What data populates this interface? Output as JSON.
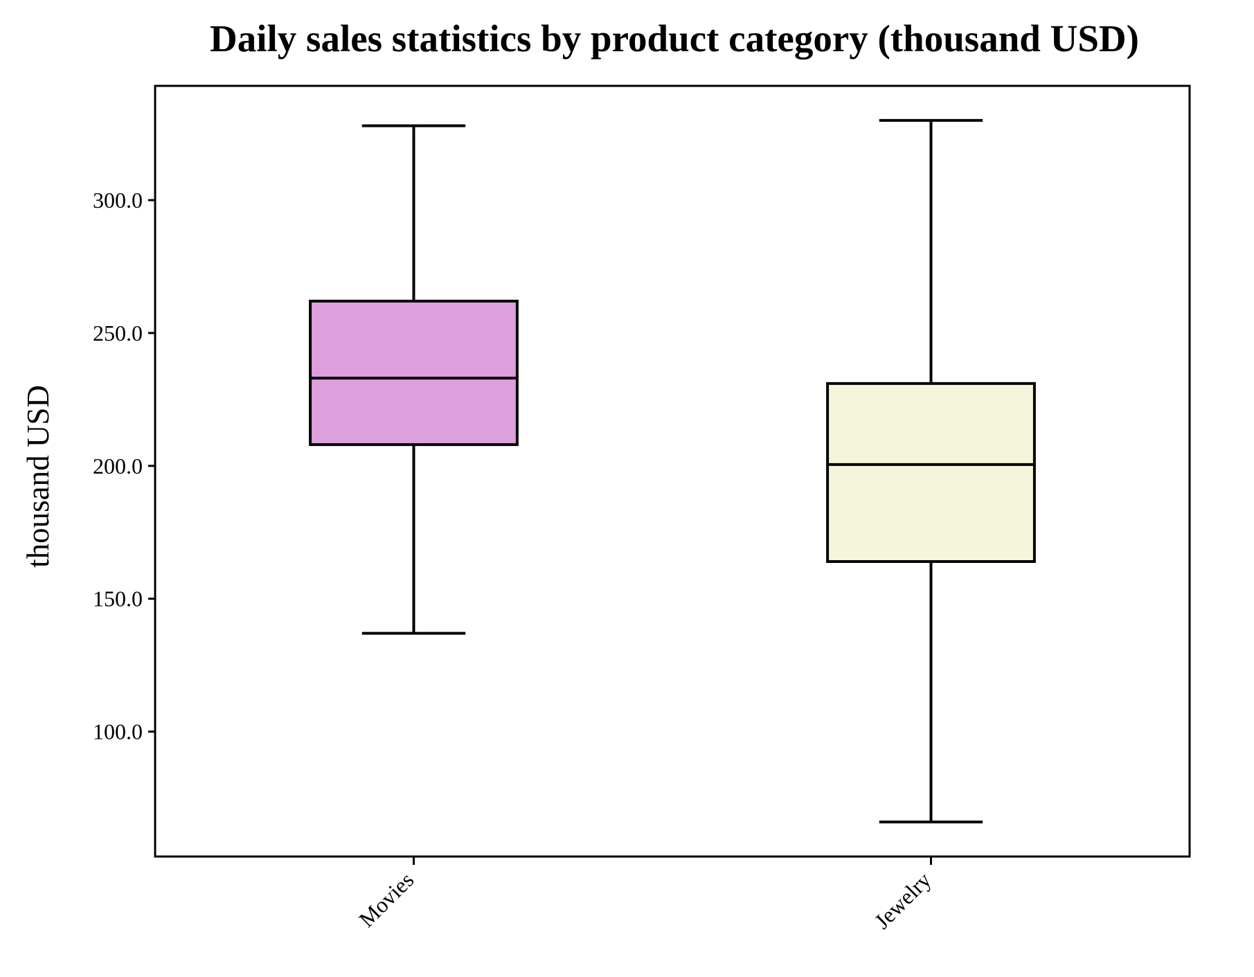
{
  "chart_data": {
    "type": "boxplot",
    "title": "Daily sales statistics by product category (thousand USD)",
    "xlabel": "",
    "ylabel": "thousand USD",
    "ylim": [
      53,
      343
    ],
    "yticks": [
      100.0,
      150.0,
      200.0,
      250.0,
      300.0
    ],
    "ytick_labels": [
      "100.0",
      "150.0",
      "200.0",
      "250.0",
      "300.0"
    ],
    "grid": false,
    "categories": [
      "Movies",
      "Jewelry"
    ],
    "boxes": [
      {
        "category": "Movies",
        "whisker_low": 137,
        "q1": 208,
        "median": 233,
        "q3": 262,
        "whisker_high": 328,
        "color": "#dda0dd"
      },
      {
        "category": "Jewelry",
        "whisker_low": 66,
        "q1": 164,
        "median": 200.5,
        "q3": 231,
        "whisker_high": 330,
        "color": "#f5f5dc"
      }
    ]
  }
}
